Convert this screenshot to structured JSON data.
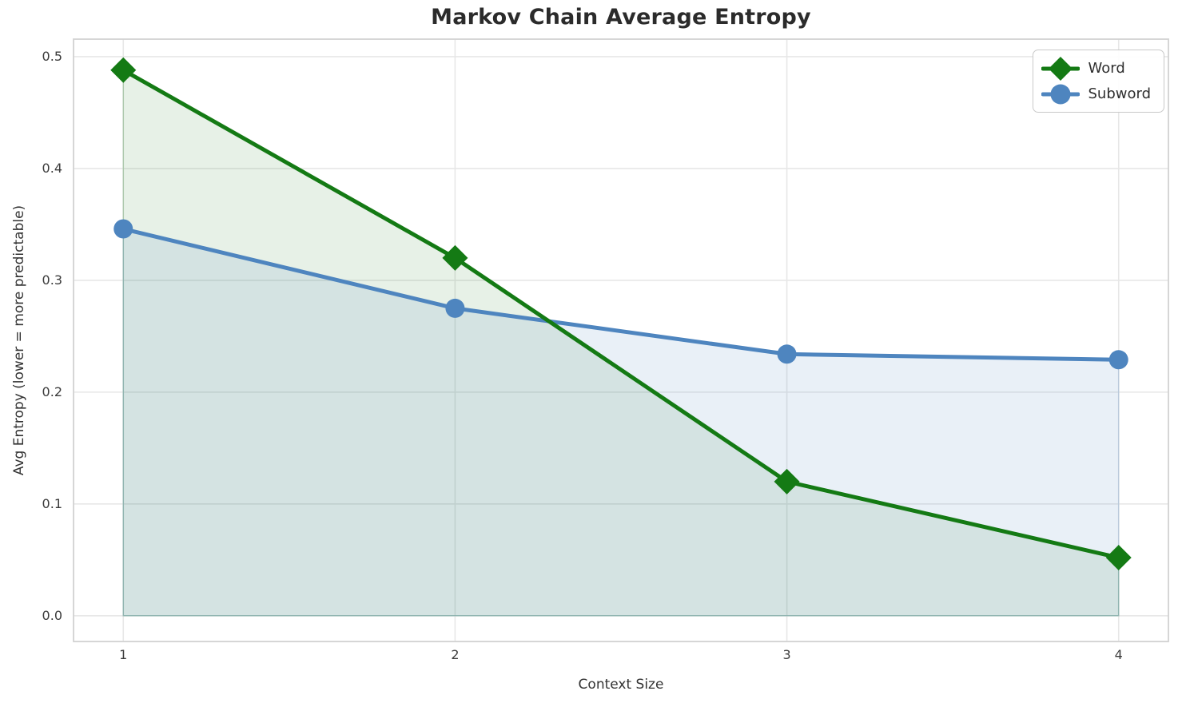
{
  "chart_data": {
    "type": "line",
    "title": "Markov Chain Average Entropy",
    "xlabel": "Context Size",
    "ylabel": "Avg Entropy (lower = more predictable)",
    "x": [
      1,
      2,
      3,
      4
    ],
    "series": [
      {
        "name": "Word",
        "values": [
          0.488,
          0.32,
          0.12,
          0.052
        ],
        "color": "#147a14",
        "marker": "diamond",
        "fill_to_zero": true,
        "fill_opacity": 0.1
      },
      {
        "name": "Subword",
        "values": [
          0.346,
          0.275,
          0.234,
          0.229
        ],
        "color": "#4e85bf",
        "marker": "circle",
        "fill_to_zero": true,
        "fill_opacity": 0.12
      }
    ],
    "xticks": {
      "values": [
        1,
        2,
        3,
        4
      ],
      "labels": [
        "1",
        "2",
        "3",
        "4"
      ]
    },
    "yticks": {
      "values": [
        0.0,
        0.1,
        0.2,
        0.3,
        0.4,
        0.5
      ],
      "labels": [
        "0.0",
        "0.1",
        "0.2",
        "0.3",
        "0.4",
        "0.5"
      ]
    },
    "xlim": [
      0.85,
      4.15
    ],
    "ylim": [
      -0.023,
      0.5157
    ],
    "grid": true,
    "legend": {
      "position": "upper right",
      "entries": [
        "Word",
        "Subword"
      ]
    },
    "colors": {
      "grid": "#e7e7e7",
      "spine": "#d2d2d2",
      "tick_text": "#3b3b3b",
      "title_text": "#2b2b2b"
    }
  }
}
